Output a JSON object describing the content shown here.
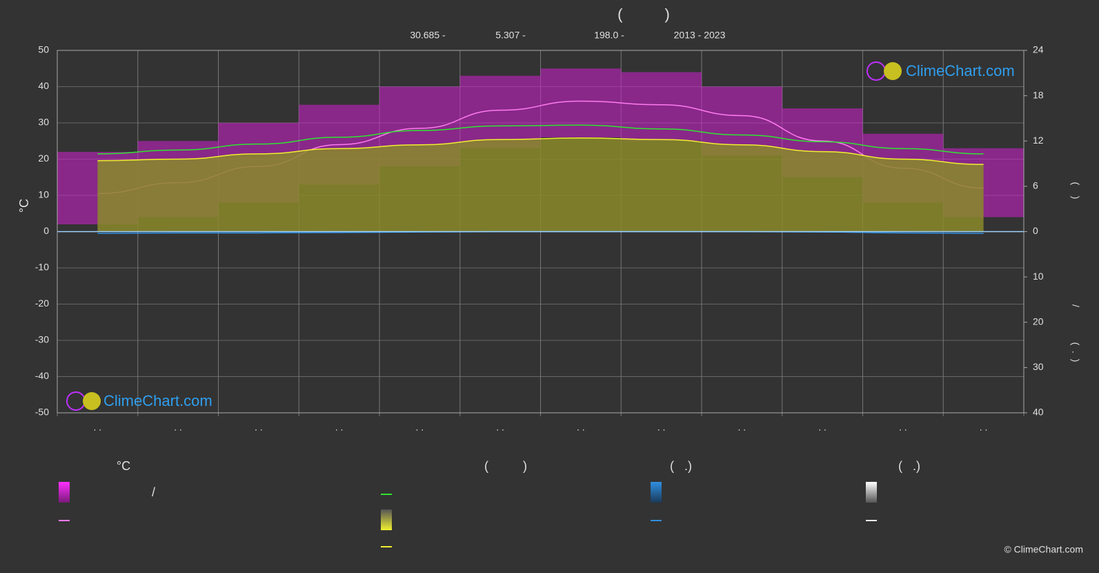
{
  "chart_data": {
    "type": "climate",
    "title": "(          )",
    "subtitle": [
      "30.685 -",
      "5.307 -",
      "198.0 -",
      "2013 - 2023"
    ],
    "y_label": "°C",
    "y2_label": "(    )",
    "y3_label": [
      "/",
      "(  .  )"
    ],
    "categories": [
      ". .",
      ". .",
      ". .",
      ". .",
      ". .",
      ". .",
      ". .",
      ". .",
      ". .",
      ". .",
      ". .",
      ". ."
    ],
    "ylim": [
      -50,
      50
    ],
    "yticks": [
      -50,
      -40,
      -30,
      -20,
      -10,
      0,
      10,
      20,
      30,
      40,
      50
    ],
    "y2lim": [
      0,
      24
    ],
    "y2ticks": [
      0,
      6,
      12,
      18,
      24
    ],
    "y3lim": [
      0,
      40
    ],
    "y3ticks": [
      10,
      20,
      30,
      40
    ],
    "grid": true,
    "temp_range": {
      "color": "#d01fd0",
      "max": [
        22,
        25,
        30,
        35,
        40,
        43,
        45,
        44,
        40,
        34,
        27,
        23
      ],
      "min": [
        2,
        4,
        8,
        13,
        18,
        23,
        26,
        25,
        21,
        15,
        8,
        4
      ]
    },
    "series": [
      {
        "color": "#ff7af0",
        "axis": "y",
        "values": [
          10.5,
          13.5,
          18,
          24,
          28.5,
          33.5,
          36,
          35,
          32,
          25,
          17.5,
          12
        ]
      },
      {
        "color": "#2ee62e",
        "axis": "y2",
        "values": [
          10.3,
          10.8,
          11.6,
          12.5,
          13.4,
          14.0,
          14.1,
          13.6,
          12.8,
          11.9,
          11.0,
          10.3
        ]
      },
      {
        "color": "#f0f030",
        "axis": "y2",
        "fill": "#8a8a2a",
        "values": [
          9.4,
          9.6,
          10.3,
          11.0,
          11.5,
          12.2,
          12.4,
          12.2,
          11.5,
          10.6,
          9.6,
          8.9
        ]
      },
      {
        "color": "#2f8fe0",
        "axis": "y3",
        "values": [
          0.4,
          0.3,
          0.3,
          0.2,
          0.1,
          0,
          0,
          0,
          0,
          0.1,
          0.3,
          0.4
        ]
      }
    ],
    "legend_headers": [
      "°C",
      "(          )",
      "(   .)",
      "(   .)"
    ],
    "legend_slash": "/",
    "logo": "ClimeChart.com",
    "copyright": "© ClimeChart.com"
  }
}
